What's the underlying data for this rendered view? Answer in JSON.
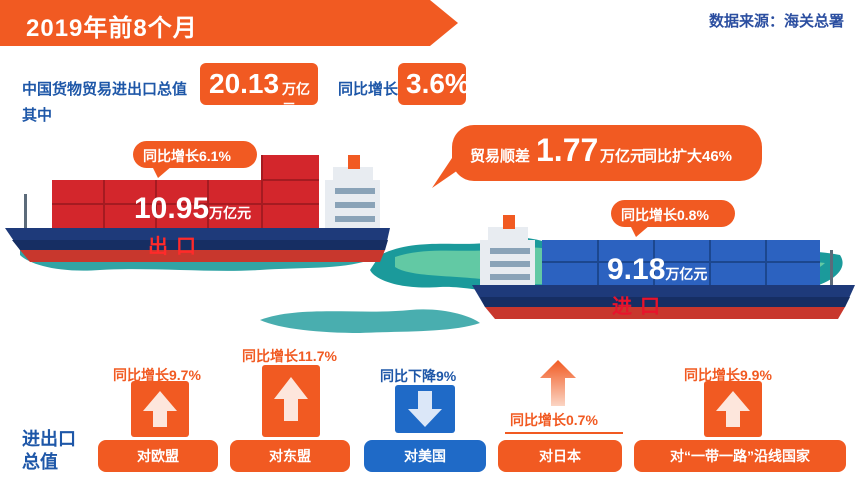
{
  "title": "2019年前8个月",
  "source": "数据来源：海关总署",
  "summary": {
    "label": "中国货物贸易进出口总值",
    "total_value": "20.13",
    "total_unit": "万亿元",
    "growth_label": "同比增长",
    "growth_value": "3.6%",
    "of_which": "其中"
  },
  "export": {
    "growth": "同比增长6.1%",
    "value": "10.95",
    "unit": "万亿元",
    "label": "出口"
  },
  "surplus": {
    "label": "贸易顺差",
    "value": "1.77",
    "unit": "万亿元",
    "growth": "同比扩大46%"
  },
  "import": {
    "growth": "同比增长0.8%",
    "value": "9.18",
    "unit": "万亿元",
    "label": "进口"
  },
  "regions_label": "进出口总值",
  "regions": [
    {
      "name": "对欧盟",
      "change": "同比增长9.7%",
      "direction": "up"
    },
    {
      "name": "对东盟",
      "change": "同比增长11.7%",
      "direction": "up"
    },
    {
      "name": "对美国",
      "change": "同比下降9%",
      "direction": "down"
    },
    {
      "name": "对日本",
      "change": "同比增长0.7%",
      "direction": "up"
    },
    {
      "name": "对“一带一路”沿线国家",
      "change": "同比增长9.9%",
      "direction": "up"
    }
  ],
  "colors": {
    "accent_orange": "#f15a22",
    "navy": "#1e3a7a",
    "container_red": "#d3262c",
    "container_blue": "#2c62c0",
    "down_blue": "#1f6ac7"
  }
}
